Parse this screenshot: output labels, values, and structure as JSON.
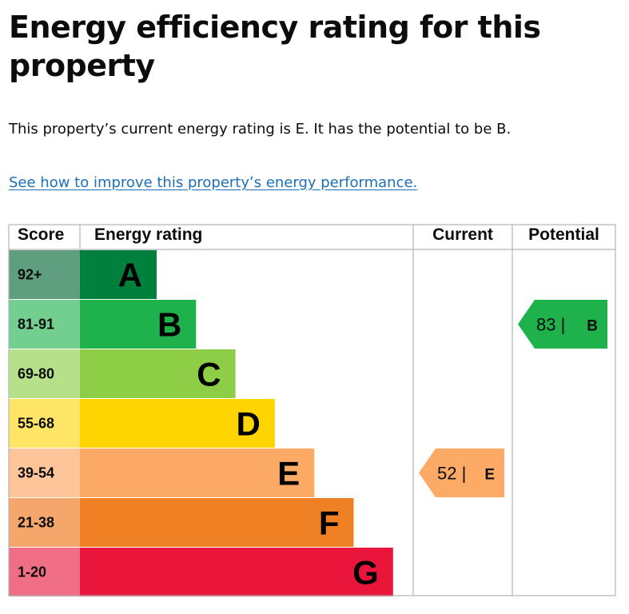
{
  "page": {
    "title": "Energy efficiency rating for this property",
    "summary": "This property’s current energy rating is E. It has the potential to be B.",
    "improve_link": "See how to improve this property’s energy performance."
  },
  "chart_data": {
    "type": "table",
    "columns": [
      "Score",
      "Energy rating",
      "Current",
      "Potential"
    ],
    "bands": [
      {
        "letter": "A",
        "score_range": "92+",
        "color": "#007f3d",
        "score_color": "#5f9f7f"
      },
      {
        "letter": "B",
        "score_range": "81-91",
        "color": "#1fb24c",
        "score_color": "#72cf8f"
      },
      {
        "letter": "C",
        "score_range": "69-80",
        "color": "#8dce46",
        "score_color": "#b7e08a"
      },
      {
        "letter": "D",
        "score_range": "55-68",
        "color": "#ffd500",
        "score_color": "#ffe566"
      },
      {
        "letter": "E",
        "score_range": "39-54",
        "color": "#fcaa65",
        "score_color": "#fdc599"
      },
      {
        "letter": "F",
        "score_range": "21-38",
        "color": "#ef8023",
        "score_color": "#f4a66b"
      },
      {
        "letter": "G",
        "score_range": "1-20",
        "color": "#e9153b",
        "score_color": "#f06e86"
      }
    ],
    "current": {
      "score": 52,
      "band": "E",
      "label_num": "52 |",
      "label_letter": "E",
      "color": "#fcaa65"
    },
    "potential": {
      "score": 83,
      "band": "B",
      "label_num": "83 |",
      "label_letter": "B",
      "color": "#1fb24c"
    }
  }
}
